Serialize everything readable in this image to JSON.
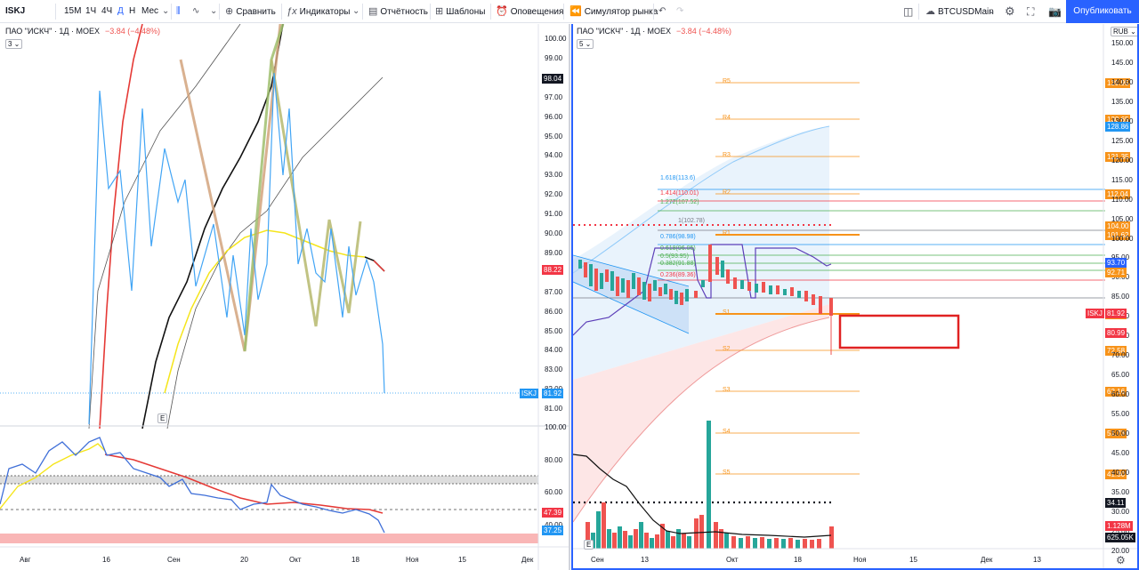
{
  "toolbar": {
    "symbol": "ISKJ",
    "intervals": [
      "15М",
      "1Ч",
      "4Ч",
      "Д",
      "Н",
      "Мес"
    ],
    "compare": "Сравнить",
    "indicators": "Индикаторы",
    "reports": "Отчётность",
    "templates": "Шаблоны",
    "alerts": "Оповещения",
    "replay": "Симулятор рынка",
    "layout_name": "BTCUSDMain",
    "publish": "Опубликовать"
  },
  "left_pane": {
    "legend_title": "ПАО \"ИСКЧ\" · 1Д · MOEX",
    "legend_change": "−3.84 (−4.48%)",
    "indicator_count": "3",
    "price_axis": [
      "100.00",
      "99.00",
      "98.00",
      "97.00",
      "96.00",
      "95.00",
      "94.00",
      "93.00",
      "92.00",
      "91.00",
      "90.00",
      "89.00",
      "88.00",
      "87.00",
      "86.00",
      "85.00",
      "84.00",
      "83.00",
      "82.00",
      "81.00"
    ],
    "price_labels": [
      {
        "text": "98.04",
        "color": "#131722"
      },
      {
        "text": "88.22",
        "color": "#f23645"
      },
      {
        "text": "81.92",
        "color": "#2196f3"
      }
    ],
    "symbol_tag": "ISKJ",
    "event_marker": "E",
    "osc_axis": [
      "100.00",
      "80.00",
      "60.00",
      "40.00"
    ],
    "osc_labels": [
      {
        "text": "47.39",
        "color": "#f23645"
      },
      {
        "text": "37.25",
        "color": "#2196f3"
      }
    ],
    "time_axis": [
      "Авг",
      "16",
      "Сен",
      "20",
      "Окт",
      "18",
      "Ноя",
      "15",
      "Дек"
    ]
  },
  "right_pane": {
    "legend_title": "ПАО \"ИСКЧ\" · 1Д · MOEX",
    "legend_change": "−3.84 (−4.48%)",
    "indicator_count": "5",
    "currency": "RUB",
    "price_axis": [
      "150.00",
      "145.00",
      "140.00",
      "135.00",
      "130.00",
      "125.00",
      "120.00",
      "115.00",
      "110.00",
      "105.00",
      "100.00",
      "95.00",
      "90.00",
      "85.00",
      "80.00",
      "75.00",
      "70.00",
      "65.00",
      "60.00",
      "55.00",
      "50.00",
      "45.00",
      "40.00",
      "35.00",
      "30.00",
      "25.00",
      "20.00"
    ],
    "pivot_levels": [
      {
        "name": "R5",
        "value": "139.95"
      },
      {
        "name": "R4",
        "value": "130.65"
      },
      {
        "name": "R3",
        "value": "121.35"
      },
      {
        "name": "R2",
        "value": "112.04"
      },
      {
        "name": "R1",
        "value": "101.62"
      },
      {
        "name": "S1",
        "value": "81.89"
      },
      {
        "name": "S2",
        "value": "72.58"
      },
      {
        "name": "S3",
        "value": "62.16"
      },
      {
        "name": "S4",
        "value": "51.73"
      },
      {
        "name": "S5",
        "value": "41.30"
      }
    ],
    "fib_levels": [
      {
        "text": "1.618(113.6)",
        "color": "#2196f3"
      },
      {
        "text": "1.414(110.01)",
        "color": "#f23645"
      },
      {
        "text": "1.272(107.52)",
        "color": "#4caf50"
      },
      {
        "text": "1(102.78)",
        "color": "#787b86"
      },
      {
        "text": "0.786(98.98)",
        "color": "#2196f3"
      },
      {
        "text": "0.618(96.05)",
        "color": "#4caf50"
      },
      {
        "text": "0.5(93.95)",
        "color": "#4caf50"
      },
      {
        "text": "0.382(91.88)",
        "color": "#4caf50"
      },
      {
        "text": "0.236(89.36)",
        "color": "#f23645"
      }
    ],
    "price_labels": [
      {
        "text": "128.86",
        "color": "#2196f3"
      },
      {
        "text": "104.00",
        "color": "#f7931a"
      },
      {
        "text": "93.70",
        "color": "#2962ff"
      },
      {
        "text": "92.71",
        "color": "#f7931a"
      },
      {
        "text": "81.92",
        "color": "#f23645"
      },
      {
        "text": "80.99",
        "color": "#f23645"
      },
      {
        "text": "34.11",
        "color": "#131722"
      },
      {
        "text": "1.128M",
        "color": "#f23645"
      },
      {
        "text": "625.05K",
        "color": "#131722"
      }
    ],
    "symbol_tag": "ISKJ",
    "event_marker": "E",
    "time_axis": [
      "Сен",
      "13",
      "Окт",
      "18",
      "Ноя",
      "15",
      "Дек",
      "13"
    ]
  }
}
